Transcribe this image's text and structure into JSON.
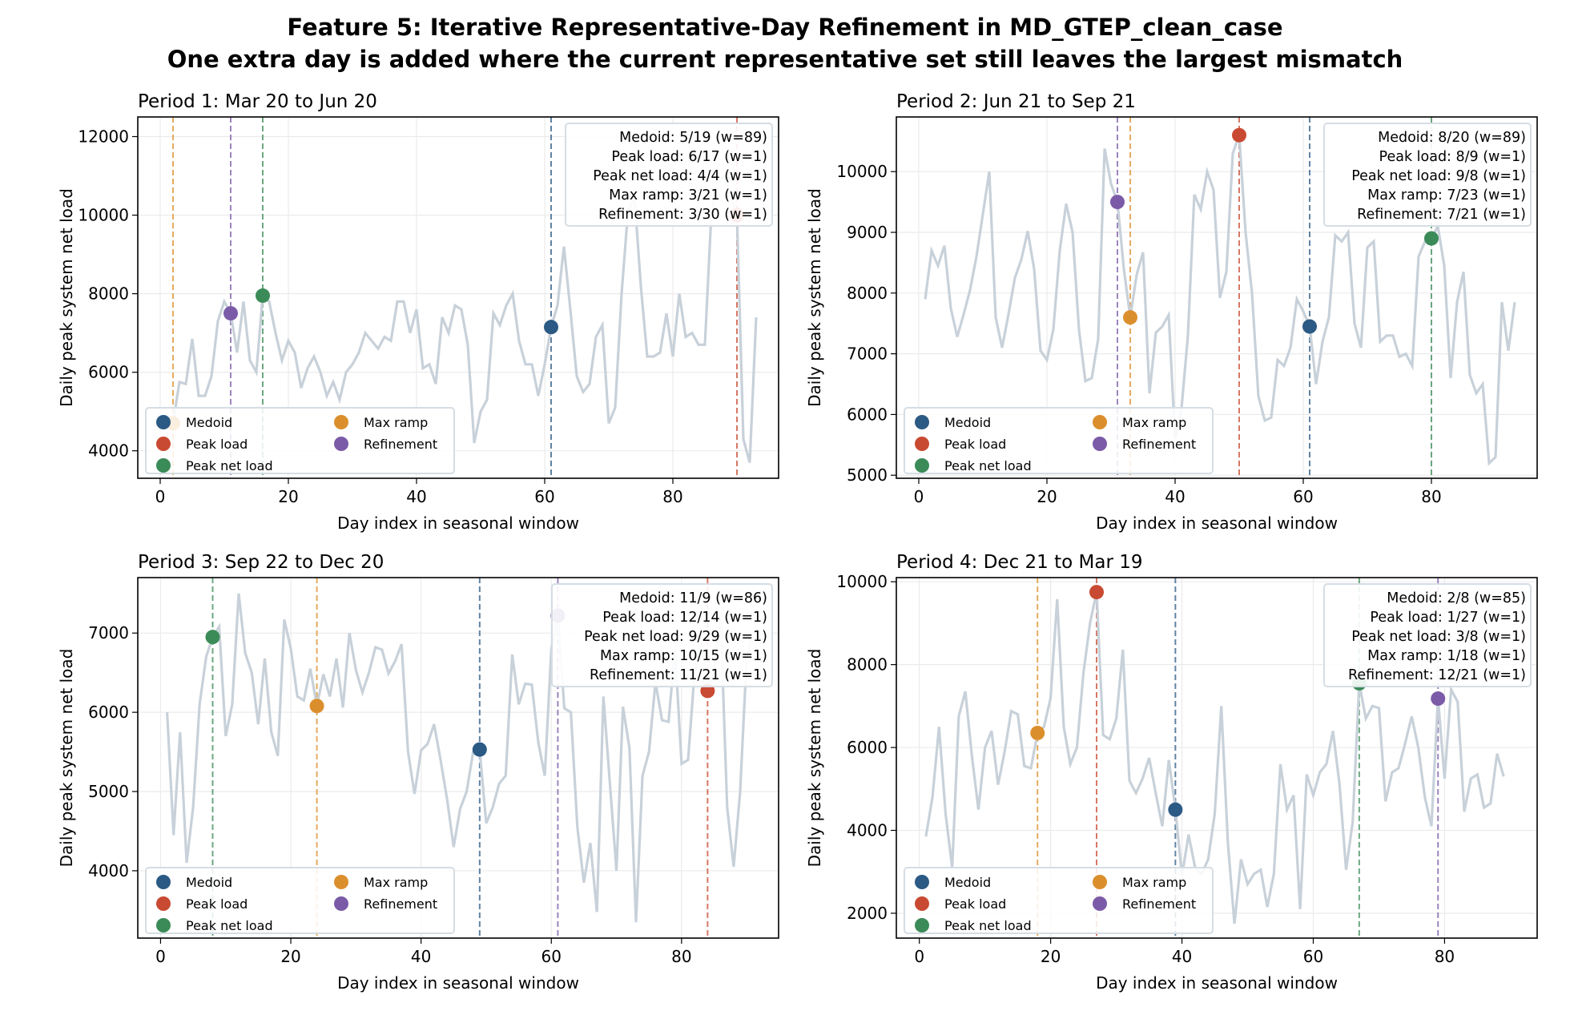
{
  "title_line1": "Feature 5: Iterative Representative-Day Refinement in MD_GTEP_clean_case",
  "title_line2": "One extra day is added where the current representative set still leaves the largest mismatch",
  "colors": {
    "line": "#c8d1d9",
    "Medoid": "#2b5a84",
    "Peak load": "#c94a32",
    "Peak net load": "#3b8b58",
    "Max ramp": "#db8f2c",
    "Refinement": "#7b5ba8"
  },
  "legend": [
    "Medoid",
    "Peak load",
    "Peak net load",
    "Max ramp",
    "Refinement"
  ],
  "chart_data": [
    {
      "type": "line",
      "title": "Period 1: Mar 20 to Jun 20",
      "xlabel": "Day index in seasonal window",
      "ylabel": "Daily peak system net load",
      "xlim": [
        -3.5,
        96.5
      ],
      "ylim": [
        3300,
        12500
      ],
      "yticks": [
        4000,
        6000,
        8000,
        10000,
        12000
      ],
      "xticks": [
        0,
        20,
        40,
        60,
        80
      ],
      "grid": true,
      "legend_position": "lower-left",
      "values": [
        4900,
        4700,
        5750,
        5700,
        6850,
        5400,
        5400,
        5900,
        7300,
        7800,
        7500,
        6500,
        7800,
        6300,
        6000,
        7950,
        7800,
        7000,
        6300,
        6800,
        6500,
        5600,
        6100,
        6400,
        6000,
        5400,
        5750,
        5300,
        6000,
        6200,
        6500,
        7000,
        6800,
        6600,
        6900,
        6800,
        7800,
        7800,
        7000,
        7600,
        6100,
        6200,
        5700,
        7400,
        7000,
        7700,
        7600,
        6700,
        4200,
        5000,
        5300,
        7500,
        7200,
        7700,
        8000,
        6800,
        6200,
        6200,
        5400,
        6200,
        7150,
        7700,
        9200,
        7600,
        5900,
        5500,
        5700,
        6900,
        7200,
        4700,
        5100,
        8000,
        10100,
        10500,
        8200,
        6400,
        6400,
        6500,
        7500,
        6400,
        8000,
        6900,
        7000,
        6700,
        6700,
        10000,
        10800,
        11000,
        10500,
        10000,
        4300,
        3700,
        7400
      ],
      "selected": [
        {
          "kind": "Medoid",
          "day": 61,
          "value": 7150
        },
        {
          "kind": "Peak load",
          "day": 90,
          "value": 10000
        },
        {
          "kind": "Peak net load",
          "day": 16,
          "value": 7950
        },
        {
          "kind": "Max ramp",
          "day": 2,
          "value": 4700
        },
        {
          "kind": "Refinement",
          "day": 11,
          "value": 7500
        }
      ],
      "annotation": [
        "Medoid: 5/19 (w=89)",
        "Peak load: 6/17 (w=1)",
        "Peak net load: 4/4 (w=1)",
        "Max ramp: 3/21 (w=1)",
        "Refinement: 3/30 (w=1)"
      ]
    },
    {
      "type": "line",
      "title": "Period 2: Jun 21 to Sep 21",
      "xlabel": "Day index in seasonal window",
      "ylabel": "Daily peak system net load",
      "xlim": [
        -3.5,
        96.5
      ],
      "ylim": [
        4950,
        10900
      ],
      "yticks": [
        5000,
        6000,
        7000,
        8000,
        9000,
        10000
      ],
      "xticks": [
        0,
        20,
        40,
        60,
        80
      ],
      "grid": true,
      "legend_position": "lower-left",
      "values": [
        7900,
        8700,
        8450,
        8780,
        7750,
        7280,
        7650,
        8050,
        8600,
        9300,
        10000,
        7600,
        7100,
        7650,
        8250,
        8550,
        9020,
        8400,
        7050,
        6900,
        7400,
        8700,
        9470,
        9000,
        7400,
        6550,
        6600,
        7250,
        10380,
        9800,
        9500,
        8400,
        7600,
        8300,
        8670,
        6350,
        7350,
        7450,
        7640,
        5600,
        6100,
        7300,
        9620,
        9380,
        10000,
        9700,
        7920,
        8350,
        10300,
        10600,
        9000,
        8000,
        6300,
        5900,
        5950,
        6900,
        6800,
        7100,
        7900,
        7700,
        7450,
        6500,
        7200,
        7600,
        8950,
        8850,
        9000,
        7500,
        7100,
        8750,
        8850,
        7200,
        7300,
        7300,
        6950,
        7000,
        6800,
        8600,
        8850,
        8900,
        9100,
        8450,
        6600,
        7850,
        8350,
        6650,
        6350,
        6500,
        5200,
        5300,
        7850,
        7050,
        7850
      ],
      "selected": [
        {
          "kind": "Medoid",
          "day": 61,
          "value": 7450
        },
        {
          "kind": "Peak load",
          "day": 50,
          "value": 10600
        },
        {
          "kind": "Peak net load",
          "day": 80,
          "value": 8900
        },
        {
          "kind": "Max ramp",
          "day": 33,
          "value": 7600
        },
        {
          "kind": "Refinement",
          "day": 31,
          "value": 9500
        }
      ],
      "annotation": [
        "Medoid: 8/20 (w=89)",
        "Peak load: 8/9 (w=1)",
        "Peak net load: 9/8 (w=1)",
        "Max ramp: 7/23 (w=1)",
        "Refinement: 7/21 (w=1)"
      ]
    },
    {
      "type": "line",
      "title": "Period 3: Sep 22 to Dec 20",
      "xlabel": "Day index in seasonal window",
      "ylabel": "Daily peak system net load",
      "xlim": [
        -3.5,
        94.9
      ],
      "ylim": [
        3150,
        7700
      ],
      "yticks": [
        4000,
        5000,
        6000,
        7000
      ],
      "xticks": [
        0,
        20,
        40,
        60,
        80
      ],
      "grid": true,
      "legend_position": "lower-left",
      "values": [
        6000,
        4450,
        5750,
        4100,
        4800,
        6100,
        6700,
        6950,
        7080,
        5700,
        6100,
        7500,
        6750,
        6500,
        5850,
        6680,
        5750,
        5450,
        7170,
        6800,
        6200,
        6150,
        6550,
        6080,
        6480,
        6200,
        6680,
        6060,
        7000,
        6530,
        6250,
        6500,
        6820,
        6790,
        6490,
        6640,
        6860,
        5500,
        4970,
        5520,
        5600,
        5850,
        5400,
        4900,
        4300,
        4780,
        5000,
        5500,
        5530,
        4600,
        4800,
        5100,
        5200,
        6730,
        6100,
        6360,
        6350,
        5620,
        5200,
        6800,
        7220,
        6050,
        6000,
        4550,
        3850,
        4350,
        3480,
        6200,
        5100,
        4000,
        6070,
        5550,
        3350,
        5200,
        5500,
        6380,
        5900,
        5880,
        6800,
        5350,
        5400,
        6500,
        6900,
        6270,
        6500,
        7200,
        4800,
        4050,
        5000,
        6700,
        7000
      ],
      "selected": [
        {
          "kind": "Medoid",
          "day": 49,
          "value": 5530
        },
        {
          "kind": "Peak load",
          "day": 84,
          "value": 6270
        },
        {
          "kind": "Peak net load",
          "day": 8,
          "value": 6950
        },
        {
          "kind": "Max ramp",
          "day": 24,
          "value": 6080
        },
        {
          "kind": "Refinement",
          "day": 61,
          "value": 7220
        }
      ],
      "annotation": [
        "Medoid: 11/9 (w=86)",
        "Peak load: 12/14 (w=1)",
        "Peak net load: 9/29 (w=1)",
        "Max ramp: 10/15 (w=1)",
        "Refinement: 11/21 (w=1)"
      ]
    },
    {
      "type": "line",
      "title": "Period 4: Dec 21 to Mar 19",
      "xlabel": "Day index in seasonal window",
      "ylabel": "Daily peak system net load",
      "xlim": [
        -3.5,
        94.1
      ],
      "ylim": [
        1400,
        10100
      ],
      "yticks": [
        2000,
        4000,
        6000,
        8000,
        10000
      ],
      "xticks": [
        0,
        20,
        40,
        60,
        80
      ],
      "grid": true,
      "legend_position": "lower-left",
      "values": [
        3850,
        4800,
        6500,
        4400,
        3100,
        6750,
        7350,
        5800,
        4500,
        6000,
        6400,
        5100,
        5900,
        6880,
        6800,
        5550,
        5500,
        6350,
        6500,
        7200,
        9580,
        6500,
        5600,
        6000,
        7800,
        9000,
        9750,
        6300,
        6200,
        6700,
        8360,
        5200,
        4900,
        5250,
        5750,
        4900,
        4100,
        5700,
        4500,
        2900,
        3900,
        3100,
        2950,
        3300,
        4400,
        7000,
        3700,
        1750,
        3300,
        2700,
        2950,
        3050,
        2150,
        2950,
        5600,
        4500,
        4850,
        2100,
        5350,
        4850,
        5400,
        5600,
        6400,
        5100,
        3050,
        4200,
        7550,
        6700,
        7000,
        6950,
        4700,
        5400,
        5500,
        6100,
        6750,
        6000,
        4800,
        4100,
        7180,
        5250,
        7400,
        7100,
        4450,
        5250,
        5350,
        4550,
        4650,
        5850,
        5300
      ],
      "selected": [
        {
          "kind": "Medoid",
          "day": 39,
          "value": 4500
        },
        {
          "kind": "Peak load",
          "day": 27,
          "value": 9750
        },
        {
          "kind": "Peak net load",
          "day": 67,
          "value": 7550
        },
        {
          "kind": "Max ramp",
          "day": 18,
          "value": 6350
        },
        {
          "kind": "Refinement",
          "day": 79,
          "value": 7180
        }
      ],
      "annotation": [
        "Medoid: 2/8 (w=85)",
        "Peak load: 1/27 (w=1)",
        "Peak net load: 3/8 (w=1)",
        "Max ramp: 1/18 (w=1)",
        "Refinement: 12/21 (w=1)"
      ]
    }
  ]
}
